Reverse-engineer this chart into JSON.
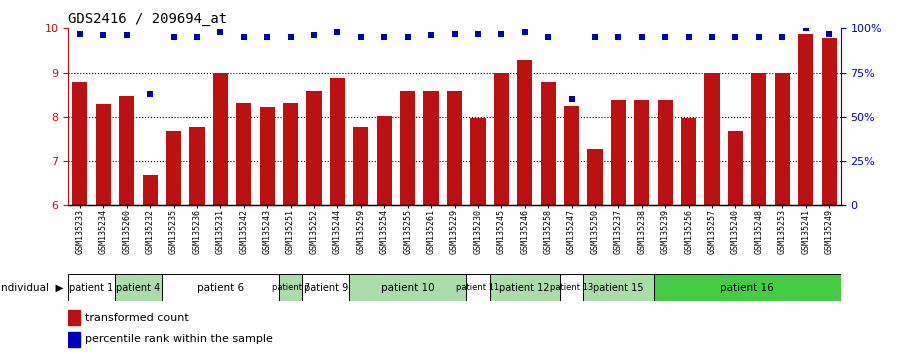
{
  "title": "GDS2416 / 209694_at",
  "gsm_labels": [
    "GSM135233",
    "GSM135234",
    "GSM135260",
    "GSM135232",
    "GSM135235",
    "GSM135236",
    "GSM135231",
    "GSM135242",
    "GSM135243",
    "GSM135251",
    "GSM135252",
    "GSM135244",
    "GSM135259",
    "GSM135254",
    "GSM135255",
    "GSM135261",
    "GSM135229",
    "GSM135230",
    "GSM135245",
    "GSM135246",
    "GSM135258",
    "GSM135247",
    "GSM135250",
    "GSM135237",
    "GSM135238",
    "GSM135239",
    "GSM135256",
    "GSM135257",
    "GSM135240",
    "GSM135248",
    "GSM135253",
    "GSM135241",
    "GSM135249"
  ],
  "bar_values": [
    8.78,
    8.28,
    8.48,
    6.68,
    7.68,
    7.78,
    8.98,
    8.32,
    8.22,
    8.32,
    8.58,
    8.88,
    7.78,
    8.02,
    8.58,
    8.58,
    8.58,
    7.98,
    8.98,
    9.28,
    8.78,
    8.25,
    7.28,
    8.38,
    8.38,
    8.38,
    7.98,
    8.98,
    7.68,
    8.98,
    8.98,
    9.88,
    9.78
  ],
  "percentile_values": [
    97,
    96,
    96,
    63,
    95,
    95,
    98,
    95,
    95,
    95,
    96,
    98,
    95,
    95,
    95,
    96,
    97,
    97,
    97,
    98,
    95,
    60,
    95,
    95,
    95,
    95,
    95,
    95,
    95,
    95,
    95,
    100,
    97
  ],
  "ylim_left": [
    6,
    10
  ],
  "ylim_right": [
    0,
    100
  ],
  "yticks_left": [
    6,
    7,
    8,
    9,
    10
  ],
  "yticks_right": [
    0,
    25,
    50,
    75,
    100
  ],
  "bar_color": "#BB1111",
  "dot_color": "#0000BB",
  "patient_groups": [
    {
      "label": "patient 1",
      "start": 0,
      "end": 2,
      "color": "#ffffff"
    },
    {
      "label": "patient 4",
      "start": 2,
      "end": 4,
      "color": "#aaddaa"
    },
    {
      "label": "patient 6",
      "start": 4,
      "end": 9,
      "color": "#ffffff"
    },
    {
      "label": "patient 7",
      "start": 9,
      "end": 10,
      "color": "#aaddaa"
    },
    {
      "label": "patient 9",
      "start": 10,
      "end": 12,
      "color": "#ffffff"
    },
    {
      "label": "patient 10",
      "start": 12,
      "end": 17,
      "color": "#aaddaa"
    },
    {
      "label": "patient 11",
      "start": 17,
      "end": 18,
      "color": "#ffffff"
    },
    {
      "label": "patient 12",
      "start": 18,
      "end": 21,
      "color": "#aaddaa"
    },
    {
      "label": "patient 13",
      "start": 21,
      "end": 22,
      "color": "#ffffff"
    },
    {
      "label": "patient 15",
      "start": 22,
      "end": 25,
      "color": "#aaddaa"
    },
    {
      "label": "patient 16",
      "start": 25,
      "end": 33,
      "color": "#44cc44"
    }
  ],
  "legend_labels": [
    "transformed count",
    "percentile rank within the sample"
  ],
  "legend_colors": [
    "#BB1111",
    "#0000BB"
  ],
  "xlabel": "individual",
  "tick_label_fontsize": 6.0,
  "bar_width": 0.65,
  "ytick_fontsize": 8,
  "title_fontsize": 10
}
